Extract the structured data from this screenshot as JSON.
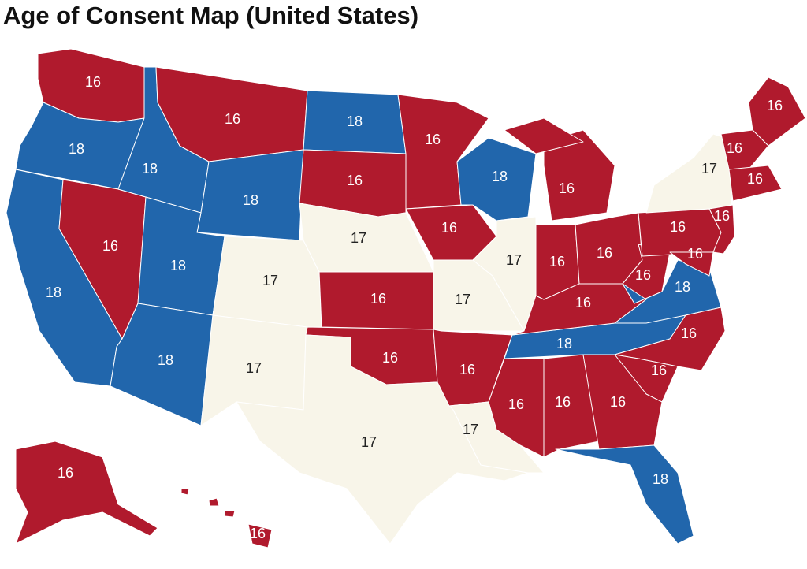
{
  "title": "Age of Consent Map (United States)",
  "regions": [
    {
      "value": 16,
      "color": "#b01a2d"
    },
    {
      "value": 18,
      "color": "#2166ac"
    },
    {
      "value": 18,
      "color": "#2166ac"
    },
    {
      "value": 16,
      "color": "#b01a2d"
    },
    {
      "value": 18,
      "color": "#2166ac"
    },
    {
      "value": 16,
      "color": "#b01a2d"
    },
    {
      "value": 18,
      "color": "#2166ac"
    },
    {
      "value": 18,
      "color": "#2166ac"
    },
    {
      "value": 18,
      "color": "#2166ac"
    },
    {
      "value": 17,
      "color": "#f8f5e9"
    },
    {
      "value": 17,
      "color": "#f8f5e9"
    },
    {
      "value": 18,
      "color": "#2166ac"
    },
    {
      "value": 16,
      "color": "#b01a2d"
    },
    {
      "value": 17,
      "color": "#f8f5e9"
    },
    {
      "value": 16,
      "color": "#b01a2d"
    },
    {
      "value": 16,
      "color": "#b01a2d"
    },
    {
      "value": 17,
      "color": "#f8f5e9"
    },
    {
      "value": 16,
      "color": "#b01a2d"
    },
    {
      "value": 16,
      "color": "#b01a2d"
    },
    {
      "value": 17,
      "color": "#f8f5e9"
    },
    {
      "value": 16,
      "color": "#b01a2d"
    },
    {
      "value": 17,
      "color": "#f8f5e9"
    },
    {
      "value": 18,
      "color": "#2166ac"
    },
    {
      "value": 17,
      "color": "#f8f5e9"
    },
    {
      "value": 16,
      "color": "#b01a2d"
    },
    {
      "value": 16,
      "color": "#b01a2d"
    },
    {
      "value": 18,
      "color": "#2166ac"
    },
    {
      "value": 16,
      "color": "#b01a2d"
    },
    {
      "value": 16,
      "color": "#b01a2d"
    },
    {
      "value": 16,
      "color": "#b01a2d"
    },
    {
      "value": 16,
      "color": "#b01a2d"
    },
    {
      "value": 16,
      "color": "#b01a2d"
    },
    {
      "value": 18,
      "color": "#2166ac"
    },
    {
      "value": 16,
      "color": "#b01a2d"
    },
    {
      "value": 16,
      "color": "#b01a2d"
    },
    {
      "value": 16,
      "color": "#b01a2d"
    },
    {
      "value": 18,
      "color": "#2166ac"
    },
    {
      "value": 16,
      "color": "#b01a2d"
    },
    {
      "value": 17,
      "color": "#f8f5e9"
    },
    {
      "value": 16,
      "color": "#b01a2d"
    },
    {
      "value": 16,
      "color": "#b01a2d"
    },
    {
      "value": 16,
      "color": "#b01a2d"
    },
    {
      "value": 16,
      "color": "#b01a2d"
    },
    {
      "value": 16,
      "color": "#b01a2d"
    },
    {
      "value": 16,
      "color": "#b01a2d"
    },
    {
      "value": 16,
      "color": "#b01a2d"
    }
  ]
}
